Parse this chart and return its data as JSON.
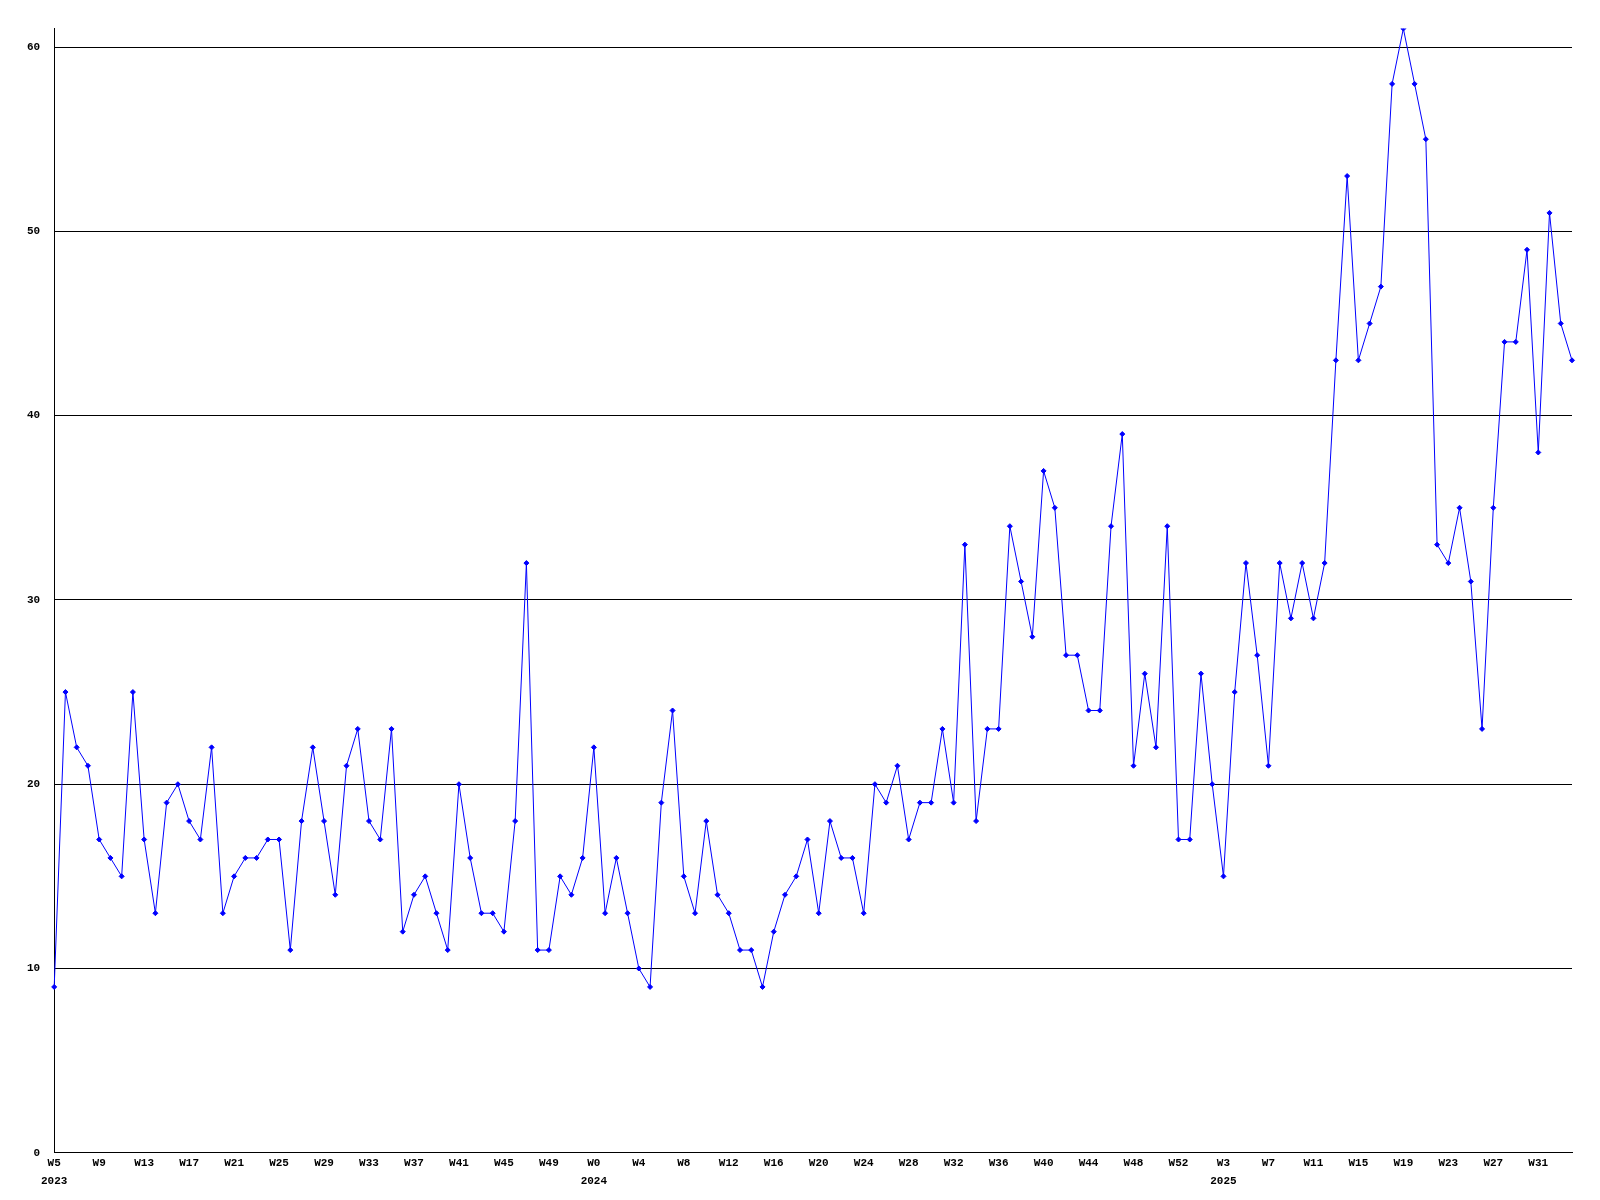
{
  "chart_data": {
    "type": "line",
    "categories": [
      "W5",
      null,
      null,
      null,
      "W9",
      null,
      null,
      null,
      "W13",
      null,
      null,
      null,
      "W17",
      null,
      null,
      null,
      "W21",
      null,
      null,
      null,
      "W25",
      null,
      null,
      null,
      "W29",
      null,
      null,
      null,
      "W33",
      null,
      null,
      null,
      "W37",
      null,
      null,
      null,
      "W41",
      null,
      null,
      null,
      "W45",
      null,
      null,
      null,
      "W49",
      null,
      null,
      null,
      "W0",
      null,
      null,
      null,
      "W4",
      null,
      null,
      null,
      "W8",
      null,
      null,
      null,
      "W12",
      null,
      null,
      null,
      "W16",
      null,
      null,
      null,
      "W20",
      null,
      null,
      null,
      "W24",
      null,
      null,
      null,
      "W28",
      null,
      null,
      null,
      "W32",
      null,
      null,
      null,
      "W36",
      null,
      null,
      null,
      "W40",
      null,
      null,
      null,
      "W44",
      null,
      null,
      null,
      "W48",
      null,
      null,
      null,
      "W52",
      null,
      null,
      null,
      "W3",
      null,
      null,
      null,
      "W7",
      null,
      null,
      null,
      "W11",
      null,
      null,
      null,
      "W15",
      null,
      null,
      null,
      "W19",
      null,
      null,
      null,
      "W23",
      null,
      null,
      null,
      "W27",
      null,
      null,
      null,
      "W31",
      null,
      null,
      null
    ],
    "values": [
      9,
      25,
      22,
      21,
      17,
      16,
      15,
      25,
      17,
      13,
      19,
      20,
      18,
      17,
      22,
      13,
      15,
      16,
      16,
      17,
      17,
      11,
      18,
      22,
      18,
      14,
      21,
      23,
      18,
      17,
      23,
      12,
      14,
      15,
      13,
      11,
      20,
      16,
      13,
      13,
      12,
      18,
      32,
      11,
      11,
      15,
      14,
      16,
      22,
      13,
      16,
      13,
      10,
      9,
      19,
      24,
      15,
      13,
      18,
      14,
      13,
      11,
      11,
      9,
      12,
      14,
      15,
      17,
      13,
      18,
      16,
      16,
      13,
      20,
      19,
      21,
      17,
      19,
      19,
      23,
      19,
      33,
      18,
      23,
      23,
      34,
      31,
      28,
      37,
      35,
      27,
      27,
      24,
      24,
      34,
      39,
      21,
      26,
      22,
      34,
      17,
      17,
      26,
      20,
      15,
      25,
      32,
      27,
      21,
      32,
      29,
      32,
      29,
      32,
      43,
      53,
      43,
      45,
      47,
      58,
      61,
      58,
      55,
      33,
      32,
      35,
      31,
      23,
      35,
      44,
      44,
      49,
      38,
      51,
      45,
      43
    ],
    "color": "#0000ff",
    "marker": "diamond",
    "ylim": [
      0,
      61
    ],
    "yticks": [
      0,
      10,
      20,
      30,
      40,
      50,
      60
    ],
    "grid": "y",
    "legend": false,
    "annotations": [
      "2023",
      "2024",
      "2025"
    ]
  }
}
